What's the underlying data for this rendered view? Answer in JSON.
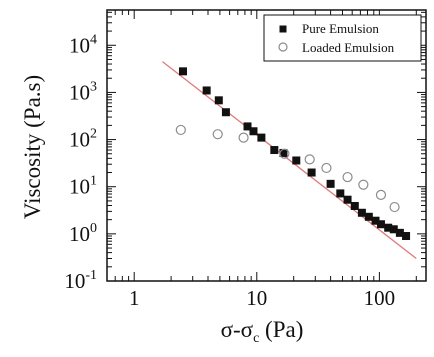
{
  "chart_data": {
    "type": "scatter",
    "xscale": "log",
    "yscale": "log",
    "xlim": [
      0.6,
      240
    ],
    "ylim": [
      0.1,
      56000
    ],
    "xticks": [
      1,
      10,
      100
    ],
    "xtick_labels": [
      "1",
      "10",
      "100"
    ],
    "yticks": [
      0.1,
      1,
      10,
      100,
      1000,
      10000
    ],
    "ytick_labels": [
      {
        "base": "10",
        "exp": "-1"
      },
      {
        "base": "10",
        "exp": "0"
      },
      {
        "base": "10",
        "exp": "1"
      },
      {
        "base": "10",
        "exp": "2"
      },
      {
        "base": "10",
        "exp": "3"
      },
      {
        "base": "10",
        "exp": "4"
      }
    ],
    "xlabel": {
      "main": "σ-σ",
      "sub": "c",
      "tail": " (Pa)"
    },
    "ylabel": "Viscosity (Pa.s)",
    "grid": false,
    "legend_position": "top-right",
    "colors": {
      "pure": "#111111",
      "loaded": "#8c8c8c",
      "fit": "#e07a7a",
      "axis": "#111111"
    },
    "series": [
      {
        "name": "Pure Emulsion",
        "marker": "filled-square",
        "x": [
          2.5,
          3.9,
          4.9,
          5.6,
          8.4,
          9.4,
          10.9,
          13.9,
          16.5,
          21,
          28,
          40,
          48,
          55,
          63,
          72,
          82,
          93,
          103,
          118,
          131,
          147,
          165
        ],
        "y": [
          2800,
          1100,
          680,
          380,
          190,
          150,
          110,
          60,
          52,
          36,
          20,
          11.5,
          7.2,
          5.3,
          3.9,
          2.8,
          2.3,
          1.9,
          1.6,
          1.35,
          1.25,
          1.05,
          0.9
        ]
      },
      {
        "name": "Loaded Emulsion",
        "marker": "open-circle",
        "x": [
          2.4,
          4.8,
          7.8,
          16.8,
          27,
          37,
          55,
          74,
          103,
          133
        ],
        "y": [
          160,
          130,
          110,
          50,
          38,
          25,
          16,
          11,
          6.7,
          3.7
        ]
      }
    ],
    "fit_line": {
      "x": [
        1.7,
        200
      ],
      "y": [
        4500,
        0.3
      ]
    }
  }
}
